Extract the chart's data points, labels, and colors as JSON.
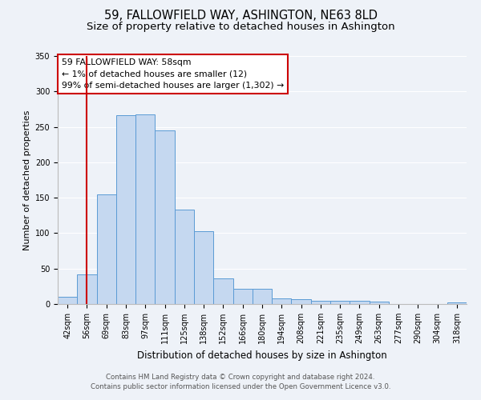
{
  "title": "59, FALLOWFIELD WAY, ASHINGTON, NE63 8LD",
  "subtitle": "Size of property relative to detached houses in Ashington",
  "xlabel": "Distribution of detached houses by size in Ashington",
  "ylabel": "Number of detached properties",
  "bar_labels": [
    "42sqm",
    "56sqm",
    "69sqm",
    "83sqm",
    "97sqm",
    "111sqm",
    "125sqm",
    "138sqm",
    "152sqm",
    "166sqm",
    "180sqm",
    "194sqm",
    "208sqm",
    "221sqm",
    "235sqm",
    "249sqm",
    "263sqm",
    "277sqm",
    "290sqm",
    "304sqm",
    "318sqm"
  ],
  "bar_heights": [
    10,
    42,
    155,
    266,
    268,
    245,
    133,
    103,
    36,
    21,
    22,
    8,
    7,
    5,
    4,
    4,
    3,
    0,
    0,
    0,
    2
  ],
  "bar_color": "#c5d8f0",
  "bar_edge_color": "#5b9bd5",
  "vline_x": 1,
  "vline_color": "#cc0000",
  "ylim": [
    0,
    350
  ],
  "yticks": [
    0,
    50,
    100,
    150,
    200,
    250,
    300,
    350
  ],
  "annotation_lines": [
    "59 FALLOWFIELD WAY: 58sqm",
    "← 1% of detached houses are smaller (12)",
    "99% of semi-detached houses are larger (1,302) →"
  ],
  "annotation_box_facecolor": "#ffffff",
  "annotation_box_edgecolor": "#cc0000",
  "footer_lines": [
    "Contains HM Land Registry data © Crown copyright and database right 2024.",
    "Contains public sector information licensed under the Open Government Licence v3.0."
  ],
  "bg_color": "#eef2f8",
  "plot_bg_color": "#eef2f8",
  "grid_color": "#ffffff",
  "title_fontsize": 10.5,
  "subtitle_fontsize": 9.5,
  "xlabel_fontsize": 8.5,
  "ylabel_fontsize": 8,
  "tick_fontsize": 7,
  "annotation_fontsize": 7.8,
  "footer_fontsize": 6.2
}
